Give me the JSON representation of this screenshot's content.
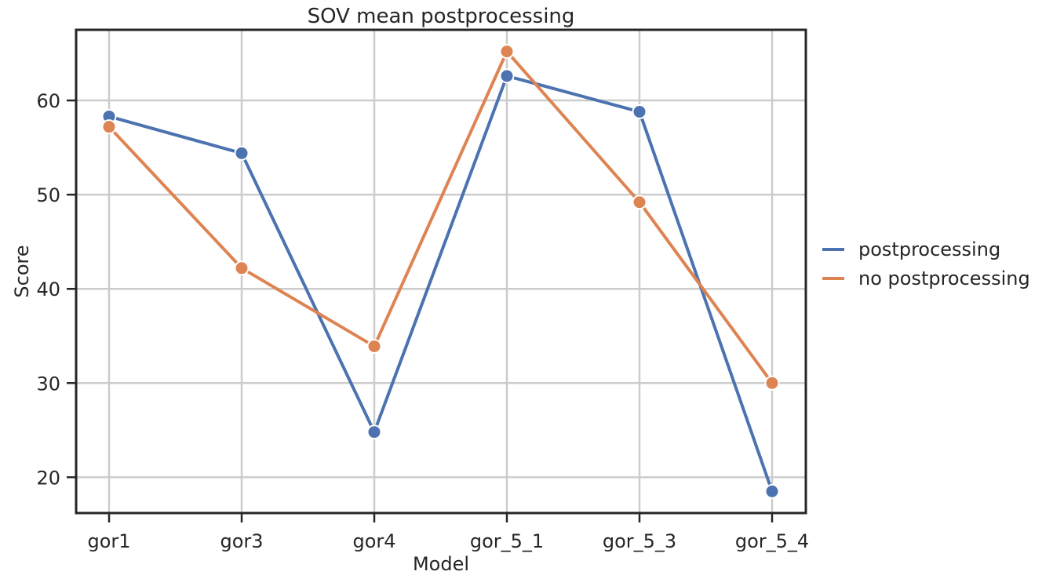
{
  "chart_data": {
    "type": "line",
    "title": "SOV mean postprocessing",
    "xlabel": "Model",
    "ylabel": "Score",
    "categories": [
      "gor1",
      "gor3",
      "gor4",
      "gor_5_1",
      "gor_5_3",
      "gor_5_4"
    ],
    "series": [
      {
        "name": "postprocessing",
        "color": "#4c72b0",
        "values": [
          58.3,
          54.4,
          24.8,
          62.6,
          58.8,
          18.5
        ]
      },
      {
        "name": "no postprocessing",
        "color": "#dd8452",
        "values": [
          57.2,
          42.2,
          33.9,
          65.2,
          49.2,
          30.0
        ]
      }
    ],
    "yticks": [
      20,
      30,
      40,
      50,
      60
    ],
    "ylim": [
      16.2,
      67.5
    ],
    "grid": true,
    "legend_position": "right"
  }
}
